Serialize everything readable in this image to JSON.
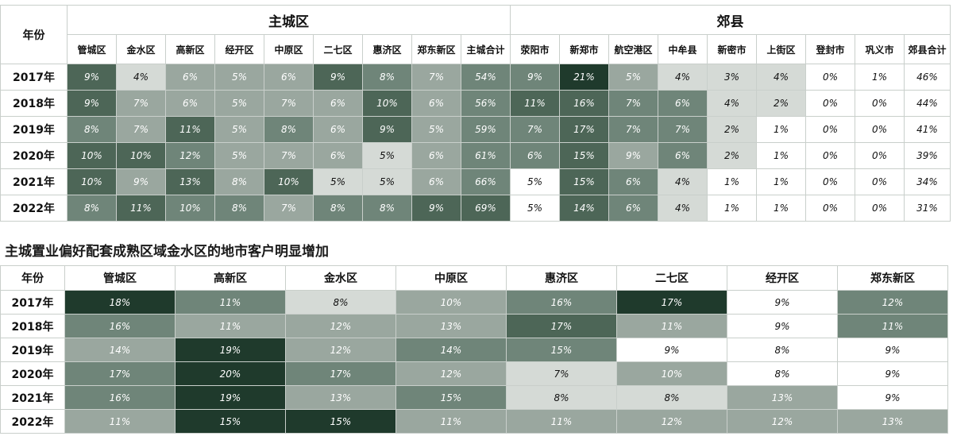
{
  "chart_data": [
    {
      "type": "table",
      "corner_label": "年份",
      "groups": [
        {
          "label": "主城区",
          "span": 9
        },
        {
          "label": "郊县",
          "span": 9
        }
      ],
      "columns": [
        "管城区",
        "金水区",
        "高新区",
        "经开区",
        "中原区",
        "二七区",
        "惠济区",
        "郑东新区",
        "主城合计",
        "荥阳市",
        "新郑市",
        "航空港区",
        "中牟县",
        "新密市",
        "上街区",
        "登封市",
        "巩义市",
        "郊县合计"
      ],
      "rows": [
        {
          "year": "2017年",
          "cells": [
            "9%",
            "4%",
            "6%",
            "5%",
            "6%",
            "9%",
            "8%",
            "7%",
            "54%",
            "9%",
            "21%",
            "5%",
            "4%",
            "3%",
            "4%",
            "0%",
            "1%",
            "46%"
          ],
          "levels": [
            3,
            0,
            1,
            1,
            1,
            3,
            2,
            1,
            2,
            2,
            4,
            1,
            0,
            0,
            0,
            -1,
            -1,
            -1
          ]
        },
        {
          "year": "2018年",
          "cells": [
            "9%",
            "7%",
            "6%",
            "5%",
            "7%",
            "6%",
            "10%",
            "6%",
            "56%",
            "11%",
            "16%",
            "7%",
            "6%",
            "4%",
            "2%",
            "0%",
            "0%",
            "44%"
          ],
          "levels": [
            3,
            1,
            1,
            1,
            1,
            1,
            3,
            1,
            2,
            3,
            3,
            2,
            2,
            0,
            0,
            -1,
            -1,
            -1
          ]
        },
        {
          "year": "2019年",
          "cells": [
            "8%",
            "7%",
            "11%",
            "5%",
            "8%",
            "6%",
            "9%",
            "5%",
            "59%",
            "7%",
            "17%",
            "7%",
            "7%",
            "2%",
            "1%",
            "0%",
            "0%",
            "41%"
          ],
          "levels": [
            2,
            1,
            3,
            1,
            2,
            1,
            3,
            1,
            2,
            2,
            3,
            2,
            2,
            0,
            -1,
            -1,
            -1,
            -1
          ]
        },
        {
          "year": "2020年",
          "cells": [
            "10%",
            "10%",
            "12%",
            "5%",
            "7%",
            "6%",
            "5%",
            "6%",
            "61%",
            "6%",
            "15%",
            "9%",
            "6%",
            "2%",
            "1%",
            "0%",
            "0%",
            "39%"
          ],
          "levels": [
            3,
            3,
            2,
            1,
            1,
            1,
            0,
            1,
            2,
            2,
            3,
            1,
            2,
            0,
            -1,
            -1,
            -1,
            -1
          ]
        },
        {
          "year": "2021年",
          "cells": [
            "10%",
            "9%",
            "13%",
            "8%",
            "10%",
            "5%",
            "5%",
            "6%",
            "66%",
            "5%",
            "15%",
            "6%",
            "4%",
            "1%",
            "1%",
            "0%",
            "0%",
            "34%"
          ],
          "levels": [
            3,
            1,
            3,
            1,
            3,
            0,
            0,
            1,
            2,
            -1,
            3,
            2,
            0,
            -1,
            -1,
            -1,
            -1,
            -1
          ]
        },
        {
          "year": "2022年",
          "cells": [
            "8%",
            "11%",
            "10%",
            "8%",
            "7%",
            "8%",
            "8%",
            "9%",
            "69%",
            "5%",
            "14%",
            "6%",
            "4%",
            "1%",
            "1%",
            "0%",
            "0%",
            "31%"
          ],
          "levels": [
            2,
            3,
            2,
            2,
            1,
            2,
            2,
            3,
            3,
            -1,
            3,
            2,
            0,
            -1,
            -1,
            -1,
            -1,
            -1
          ]
        }
      ]
    },
    {
      "type": "table",
      "title": "主城置业偏好配套成熟区域金水区的地市客户明显增加",
      "corner_label": "年份",
      "columns": [
        "管城区",
        "高新区",
        "金水区",
        "中原区",
        "惠济区",
        "二七区",
        "经开区",
        "郑东新区"
      ],
      "rows": [
        {
          "year": "2017年",
          "cells": [
            "18%",
            "11%",
            "8%",
            "10%",
            "16%",
            "17%",
            "9%",
            "12%"
          ],
          "levels": [
            4,
            2,
            0,
            1,
            2,
            4,
            -1,
            2
          ]
        },
        {
          "year": "2018年",
          "cells": [
            "16%",
            "11%",
            "12%",
            "13%",
            "17%",
            "11%",
            "9%",
            "11%"
          ],
          "levels": [
            2,
            1,
            1,
            1,
            3,
            1,
            -1,
            2
          ]
        },
        {
          "year": "2019年",
          "cells": [
            "14%",
            "19%",
            "12%",
            "14%",
            "15%",
            "9%",
            "8%",
            "9%"
          ],
          "levels": [
            1,
            4,
            1,
            2,
            2,
            -1,
            -1,
            -1
          ]
        },
        {
          "year": "2020年",
          "cells": [
            "17%",
            "20%",
            "17%",
            "12%",
            "7%",
            "10%",
            "8%",
            "9%"
          ],
          "levels": [
            2,
            4,
            2,
            1,
            0,
            1,
            -1,
            -1
          ]
        },
        {
          "year": "2021年",
          "cells": [
            "16%",
            "19%",
            "13%",
            "15%",
            "8%",
            "8%",
            "13%",
            "9%"
          ],
          "levels": [
            2,
            4,
            1,
            2,
            0,
            0,
            1,
            -1
          ]
        },
        {
          "year": "2022年",
          "cells": [
            "11%",
            "15%",
            "15%",
            "11%",
            "11%",
            "12%",
            "12%",
            "13%"
          ],
          "levels": [
            1,
            4,
            4,
            1,
            1,
            1,
            1,
            1
          ]
        }
      ]
    }
  ],
  "palette": {
    "-1": {
      "bg": "#ffffff",
      "fg": "#111111"
    },
    "0": {
      "bg": "#d5dad6",
      "fg": "#111111"
    },
    "1": {
      "bg": "#9aa79f",
      "fg": "#ffffff"
    },
    "2": {
      "bg": "#6f8579",
      "fg": "#ffffff"
    },
    "3": {
      "bg": "#4d6657",
      "fg": "#ffffff"
    },
    "4": {
      "bg": "#1f3a2c",
      "fg": "#ffffff"
    }
  }
}
